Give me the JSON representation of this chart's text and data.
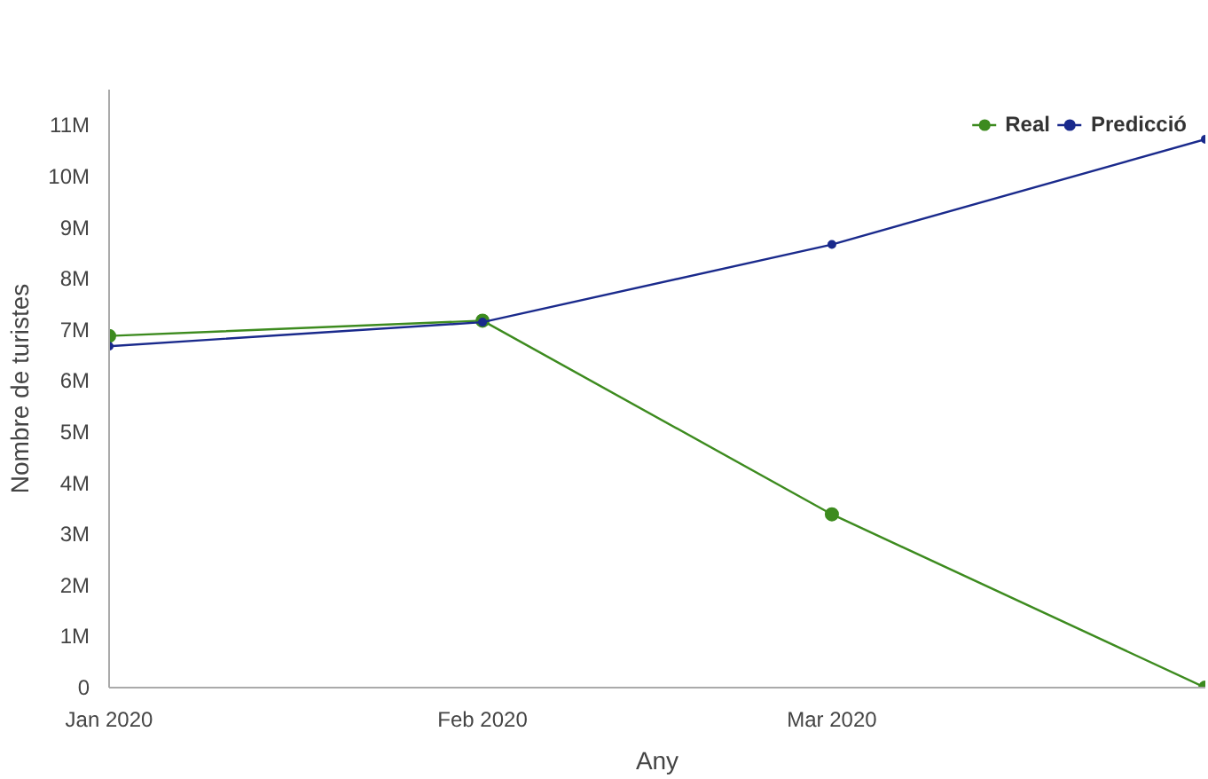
{
  "chart_data": {
    "type": "line",
    "xlabel": "Any",
    "ylabel": "Nombre de turistes",
    "x": [
      "2020-01",
      "2020-02",
      "2020-03",
      "2020-04"
    ],
    "series": [
      {
        "name": "Real",
        "color": "#3d8b1f",
        "values": [
          6880000,
          7180000,
          3390000,
          0
        ]
      },
      {
        "name": "Predicció",
        "color": "#1a2a8c",
        "values": [
          6680000,
          7150000,
          8670000,
          10730000
        ]
      }
    ],
    "xlim": [
      "2020-01",
      "2020-04"
    ],
    "xticks": [
      {
        "value": "2020-01",
        "label": "Jan 2020"
      },
      {
        "value": "2020-02",
        "label": "Feb 2020"
      },
      {
        "value": "2020-03",
        "label": "Mar 2020"
      }
    ],
    "ylim": [
      0,
      11700000
    ],
    "yticks": [
      0,
      {
        "value": 1000000,
        "label": "1M"
      },
      {
        "value": 2000000,
        "label": "2M"
      },
      {
        "value": 3000000,
        "label": "3M"
      },
      {
        "value": 4000000,
        "label": "4M"
      },
      {
        "value": 5000000,
        "label": "5M"
      },
      {
        "value": 6000000,
        "label": "6M"
      },
      {
        "value": 7000000,
        "label": "7M"
      },
      {
        "value": 8000000,
        "label": "8M"
      },
      {
        "value": 9000000,
        "label": "9M"
      },
      {
        "value": 10000000,
        "label": "10M"
      },
      {
        "value": 11000000,
        "label": "11M"
      }
    ],
    "legend": "top right",
    "marker": "circle",
    "grid": false
  }
}
